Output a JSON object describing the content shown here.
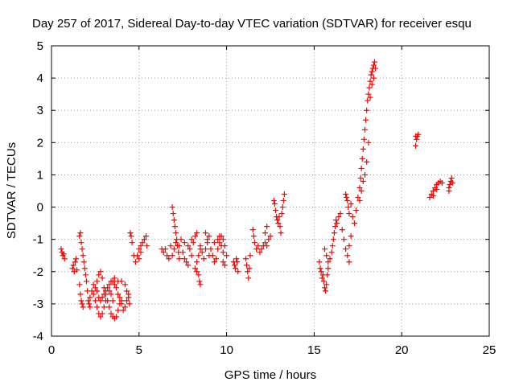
{
  "chart_data": {
    "type": "scatter",
    "title": "Day 257 of 2017, Sidereal Day-to-day VTEC variation (SDTVAR) for receiver esqu",
    "xlabel": "GPS time / hours",
    "ylabel": "SDTVAR / TECUs",
    "xlim": [
      0,
      25
    ],
    "ylim": [
      -4,
      5
    ],
    "xticks": [
      "0",
      "5",
      "10",
      "15",
      "20",
      "25"
    ],
    "yticks": [
      "-4",
      "-3",
      "-2",
      "-1",
      "0",
      "1",
      "2",
      "3",
      "4",
      "5"
    ],
    "grid": true,
    "marker": "plus",
    "color": "#ff0000",
    "series": [
      {
        "name": "SDTVAR",
        "points": [
          [
            0.55,
            -1.3
          ],
          [
            0.6,
            -1.4
          ],
          [
            0.65,
            -1.5
          ],
          [
            0.7,
            -1.45
          ],
          [
            0.75,
            -1.6
          ],
          [
            1.2,
            -1.9
          ],
          [
            1.25,
            -1.8
          ],
          [
            1.3,
            -2.0
          ],
          [
            1.35,
            -1.7
          ],
          [
            1.4,
            -1.6
          ],
          [
            1.45,
            -1.95
          ],
          [
            1.6,
            -0.9
          ],
          [
            1.65,
            -0.8
          ],
          [
            1.7,
            -1.1
          ],
          [
            1.75,
            -1.3
          ],
          [
            1.8,
            -1.5
          ],
          [
            1.85,
            -1.7
          ],
          [
            1.9,
            -1.9
          ],
          [
            1.95,
            -2.1
          ],
          [
            2.0,
            -2.3
          ],
          [
            2.05,
            -2.6
          ],
          [
            2.1,
            -2.9
          ],
          [
            2.15,
            -3.0
          ],
          [
            2.2,
            -3.1
          ],
          [
            1.6,
            -2.4
          ],
          [
            1.65,
            -2.7
          ],
          [
            1.7,
            -2.9
          ],
          [
            1.75,
            -3.0
          ],
          [
            1.8,
            -3.1
          ],
          [
            2.2,
            -2.8
          ],
          [
            2.3,
            -2.6
          ],
          [
            2.4,
            -2.7
          ],
          [
            2.5,
            -2.9
          ],
          [
            2.6,
            -3.1
          ],
          [
            2.7,
            -3.3
          ],
          [
            2.8,
            -3.4
          ],
          [
            2.9,
            -3.3
          ],
          [
            3.0,
            -3.1
          ],
          [
            3.1,
            -2.9
          ],
          [
            2.6,
            -2.3
          ],
          [
            2.7,
            -2.1
          ],
          [
            2.8,
            -2.0
          ],
          [
            2.9,
            -2.2
          ],
          [
            3.0,
            -2.5
          ],
          [
            3.1,
            -2.7
          ],
          [
            3.2,
            -2.9
          ],
          [
            3.3,
            -3.1
          ],
          [
            3.4,
            -3.3
          ],
          [
            3.5,
            -3.4
          ],
          [
            3.6,
            -3.45
          ],
          [
            3.7,
            -3.4
          ],
          [
            3.8,
            -3.2
          ],
          [
            3.9,
            -3.0
          ],
          [
            4.0,
            -2.9
          ],
          [
            2.4,
            -2.4
          ],
          [
            2.5,
            -2.5
          ],
          [
            2.6,
            -2.6
          ],
          [
            2.7,
            -2.8
          ],
          [
            2.8,
            -2.9
          ],
          [
            2.9,
            -2.8
          ],
          [
            3.0,
            -2.7
          ],
          [
            3.1,
            -2.6
          ],
          [
            3.2,
            -2.5
          ],
          [
            3.3,
            -2.6
          ],
          [
            3.4,
            -2.7
          ],
          [
            3.5,
            -2.9
          ],
          [
            3.3,
            -2.4
          ],
          [
            3.4,
            -2.3
          ],
          [
            3.5,
            -2.3
          ],
          [
            3.6,
            -2.4
          ],
          [
            3.7,
            -2.5
          ],
          [
            3.8,
            -2.7
          ],
          [
            3.9,
            -2.8
          ],
          [
            4.0,
            -3.0
          ],
          [
            4.1,
            -3.2
          ],
          [
            4.2,
            -3.1
          ],
          [
            4.3,
            -2.9
          ],
          [
            4.4,
            -2.7
          ],
          [
            3.6,
            -2.2
          ],
          [
            3.8,
            -2.3
          ],
          [
            4.0,
            -2.3
          ],
          [
            4.2,
            -2.4
          ],
          [
            4.3,
            -2.6
          ],
          [
            4.4,
            -2.8
          ],
          [
            4.45,
            -3.0
          ],
          [
            4.5,
            -0.8
          ],
          [
            4.55,
            -0.9
          ],
          [
            4.6,
            -1.1
          ],
          [
            4.7,
            -1.5
          ],
          [
            4.8,
            -1.7
          ],
          [
            4.9,
            -1.5
          ],
          [
            5.0,
            -1.3
          ],
          [
            5.1,
            -1.2
          ],
          [
            5.2,
            -1.1
          ],
          [
            5.3,
            -1.0
          ],
          [
            5.4,
            -0.9
          ],
          [
            5.45,
            -1.2
          ],
          [
            5.0,
            -1.6
          ],
          [
            5.1,
            -1.4
          ],
          [
            6.3,
            -1.3
          ],
          [
            6.4,
            -1.4
          ],
          [
            6.5,
            -1.3
          ],
          [
            6.6,
            -1.5
          ],
          [
            6.7,
            -1.6
          ],
          [
            6.8,
            -1.2
          ],
          [
            6.9,
            0.0
          ],
          [
            6.95,
            -0.2
          ],
          [
            7.0,
            -0.4
          ],
          [
            7.05,
            -0.6
          ],
          [
            7.1,
            -0.8
          ],
          [
            7.15,
            -1.0
          ],
          [
            7.2,
            -1.2
          ],
          [
            7.25,
            -1.4
          ],
          [
            7.3,
            -1.6
          ],
          [
            6.9,
            -1.5
          ],
          [
            7.0,
            -1.3
          ],
          [
            7.1,
            -1.1
          ],
          [
            7.3,
            -1.2
          ],
          [
            7.5,
            -1.4
          ],
          [
            7.6,
            -1.6
          ],
          [
            7.7,
            -1.7
          ],
          [
            7.8,
            -1.8
          ],
          [
            7.4,
            -1.0
          ],
          [
            7.6,
            -1.1
          ],
          [
            7.8,
            -1.2
          ],
          [
            8.0,
            -1.0
          ],
          [
            8.1,
            -1.1
          ],
          [
            8.2,
            -0.9
          ],
          [
            8.3,
            -0.8
          ],
          [
            7.9,
            -1.3
          ],
          [
            8.0,
            -1.5
          ],
          [
            8.2,
            -1.9
          ],
          [
            8.3,
            -2.0
          ],
          [
            8.4,
            -2.1
          ],
          [
            8.45,
            -2.3
          ],
          [
            8.5,
            -2.4
          ],
          [
            8.3,
            -1.7
          ],
          [
            8.4,
            -1.5
          ],
          [
            8.5,
            -1.3
          ],
          [
            8.5,
            -1.2
          ],
          [
            8.6,
            -1.4
          ],
          [
            8.7,
            -1.6
          ],
          [
            8.8,
            -1.3
          ],
          [
            8.9,
            -1.1
          ],
          [
            9.0,
            -0.9
          ],
          [
            8.8,
            -0.8
          ],
          [
            8.9,
            -1.0
          ],
          [
            9.0,
            -1.5
          ],
          [
            9.1,
            -1.3
          ],
          [
            9.2,
            -1.5
          ],
          [
            9.3,
            -1.7
          ],
          [
            9.4,
            -1.6
          ],
          [
            9.5,
            -1.3
          ],
          [
            9.6,
            -1.1
          ],
          [
            9.7,
            -0.9
          ],
          [
            9.8,
            -1.0
          ],
          [
            9.9,
            -1.2
          ],
          [
            10.0,
            -1.5
          ],
          [
            9.8,
            -1.7
          ],
          [
            9.9,
            -1.8
          ],
          [
            9.5,
            -1.0
          ],
          [
            9.6,
            -0.9
          ],
          [
            9.7,
            -1.2
          ],
          [
            9.8,
            -1.4
          ],
          [
            9.3,
            -1.1
          ],
          [
            10.4,
            -1.7
          ],
          [
            10.45,
            -1.8
          ],
          [
            10.5,
            -1.9
          ],
          [
            10.55,
            -1.6
          ],
          [
            10.6,
            -1.7
          ],
          [
            10.65,
            -2.0
          ],
          [
            11.1,
            -1.6
          ],
          [
            11.15,
            -1.8
          ],
          [
            11.2,
            -2.0
          ],
          [
            11.25,
            -2.2
          ],
          [
            11.3,
            -1.9
          ],
          [
            11.35,
            -1.5
          ],
          [
            11.5,
            -0.7
          ],
          [
            11.55,
            -0.9
          ],
          [
            11.6,
            -1.1
          ],
          [
            11.7,
            -1.3
          ],
          [
            11.8,
            -1.2
          ],
          [
            11.9,
            -1.4
          ],
          [
            12.0,
            -1.3
          ],
          [
            12.1,
            -1.2
          ],
          [
            12.2,
            -1.1
          ],
          [
            12.3,
            -1.2
          ],
          [
            12.4,
            -1.0
          ],
          [
            12.2,
            -0.8
          ],
          [
            12.3,
            -0.6
          ],
          [
            12.5,
            -0.9
          ],
          [
            12.7,
            0.2
          ],
          [
            12.75,
            0.1
          ],
          [
            12.8,
            -0.1
          ],
          [
            12.85,
            -0.3
          ],
          [
            12.9,
            -0.4
          ],
          [
            12.95,
            -0.5
          ],
          [
            13.0,
            -0.3
          ],
          [
            13.05,
            -0.6
          ],
          [
            13.1,
            -0.8
          ],
          [
            13.15,
            -0.2
          ],
          [
            13.2,
            0.0
          ],
          [
            13.25,
            0.2
          ],
          [
            13.3,
            0.4
          ],
          [
            15.3,
            -1.7
          ],
          [
            15.35,
            -1.9
          ],
          [
            15.4,
            -2.0
          ],
          [
            15.45,
            -2.2
          ],
          [
            15.5,
            -2.1
          ],
          [
            15.55,
            -2.3
          ],
          [
            15.6,
            -2.5
          ],
          [
            15.65,
            -2.6
          ],
          [
            15.7,
            -2.4
          ],
          [
            15.75,
            -2.1
          ],
          [
            15.8,
            -1.9
          ],
          [
            15.6,
            -1.3
          ],
          [
            15.7,
            -1.5
          ],
          [
            15.8,
            -1.7
          ],
          [
            15.9,
            -1.6
          ],
          [
            16.0,
            -1.4
          ],
          [
            16.05,
            -1.2
          ],
          [
            16.1,
            -1.0
          ],
          [
            16.15,
            -0.8
          ],
          [
            16.2,
            -0.6
          ],
          [
            16.25,
            -0.4
          ],
          [
            16.3,
            -0.5
          ],
          [
            16.4,
            -0.3
          ],
          [
            16.5,
            -0.2
          ],
          [
            16.6,
            -0.7
          ],
          [
            16.7,
            -1.0
          ],
          [
            16.8,
            -1.3
          ],
          [
            16.9,
            -1.5
          ],
          [
            17.0,
            -1.2
          ],
          [
            17.1,
            -0.9
          ],
          [
            17.0,
            -1.7
          ],
          [
            16.8,
            0.4
          ],
          [
            16.85,
            0.3
          ],
          [
            16.9,
            0.2
          ],
          [
            16.95,
            0.0
          ],
          [
            17.0,
            -0.2
          ],
          [
            17.1,
            0.1
          ],
          [
            17.2,
            -0.3
          ],
          [
            17.3,
            -0.5
          ],
          [
            17.4,
            -0.1
          ],
          [
            17.5,
            0.3
          ],
          [
            17.6,
            0.6
          ],
          [
            17.65,
            0.9
          ],
          [
            17.7,
            1.2
          ],
          [
            17.75,
            1.5
          ],
          [
            17.8,
            1.8
          ],
          [
            17.85,
            2.1
          ],
          [
            17.9,
            2.4
          ],
          [
            17.95,
            2.7
          ],
          [
            18.0,
            3.0
          ],
          [
            18.05,
            3.3
          ],
          [
            18.1,
            3.5
          ],
          [
            18.15,
            3.7
          ],
          [
            18.2,
            3.9
          ],
          [
            18.25,
            4.1
          ],
          [
            18.3,
            4.2
          ],
          [
            18.35,
            4.3
          ],
          [
            18.4,
            4.4
          ],
          [
            18.45,
            4.5
          ],
          [
            17.6,
            0.2
          ],
          [
            17.7,
            0.5
          ],
          [
            17.8,
            0.8
          ],
          [
            17.9,
            1.0
          ],
          [
            18.0,
            1.4
          ],
          [
            18.1,
            2.0
          ],
          [
            18.2,
            3.4
          ],
          [
            18.3,
            3.8
          ],
          [
            18.4,
            4.0
          ],
          [
            18.5,
            4.3
          ],
          [
            20.8,
            2.2
          ],
          [
            20.85,
            2.1
          ],
          [
            20.9,
            2.2
          ],
          [
            20.95,
            2.25
          ],
          [
            20.8,
            1.9
          ],
          [
            21.6,
            0.3
          ],
          [
            21.7,
            0.4
          ],
          [
            21.8,
            0.5
          ],
          [
            21.9,
            0.6
          ],
          [
            22.0,
            0.7
          ],
          [
            22.1,
            0.75
          ],
          [
            22.2,
            0.8
          ],
          [
            22.3,
            0.75
          ],
          [
            21.8,
            0.35
          ],
          [
            22.0,
            0.55
          ],
          [
            22.7,
            0.6
          ],
          [
            22.75,
            0.7
          ],
          [
            22.8,
            0.8
          ],
          [
            22.85,
            0.9
          ],
          [
            22.9,
            0.75
          ],
          [
            22.7,
            0.5
          ]
        ]
      }
    ]
  }
}
